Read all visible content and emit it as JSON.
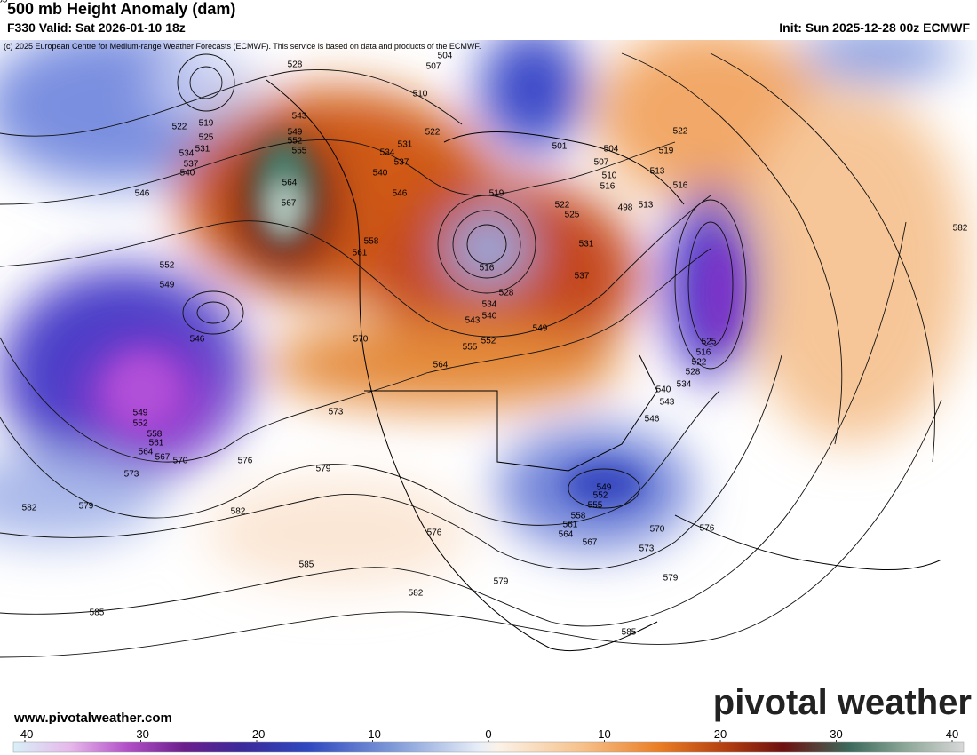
{
  "header": {
    "title": "500 mb Height Anomaly (dam)",
    "valid": "F330 Valid: Sat 2026-01-10 18z",
    "init": "Init: Sun 2025-12-28 00z ECMWF",
    "credit": "(c) 2025 European Centre for Medium-range Weather Forecasts (ECMWF). This service is based on data and products of the ECMWF."
  },
  "footer": {
    "website": "www.pivotalweather.com",
    "logo": "pivotal weather"
  },
  "colorbar": {
    "ticks": [
      -40,
      -30,
      -20,
      -10,
      0,
      10,
      20,
      30,
      40
    ]
  },
  "contour_labels": [
    528,
    522,
    519,
    525,
    531,
    534,
    537,
    540,
    546,
    543,
    549,
    552,
    555,
    564,
    567,
    558,
    561,
    552,
    549,
    546,
    549,
    552,
    558,
    561,
    564,
    567,
    570,
    573,
    576,
    573,
    579,
    582,
    579,
    582,
    585,
    585,
    576,
    582,
    579,
    585,
    507,
    504,
    510,
    522,
    531,
    534,
    537,
    540,
    546,
    519,
    516,
    528,
    534,
    540,
    543,
    552,
    555,
    564,
    570,
    549,
    537,
    531,
    525,
    522,
    516,
    510,
    507,
    504,
    501,
    498,
    513,
    516,
    513,
    519,
    522,
    525,
    516,
    522,
    528,
    534,
    540,
    543,
    546,
    549,
    552,
    555,
    558,
    561,
    564,
    567,
    570,
    573,
    576,
    579,
    582,
    585
  ]
}
